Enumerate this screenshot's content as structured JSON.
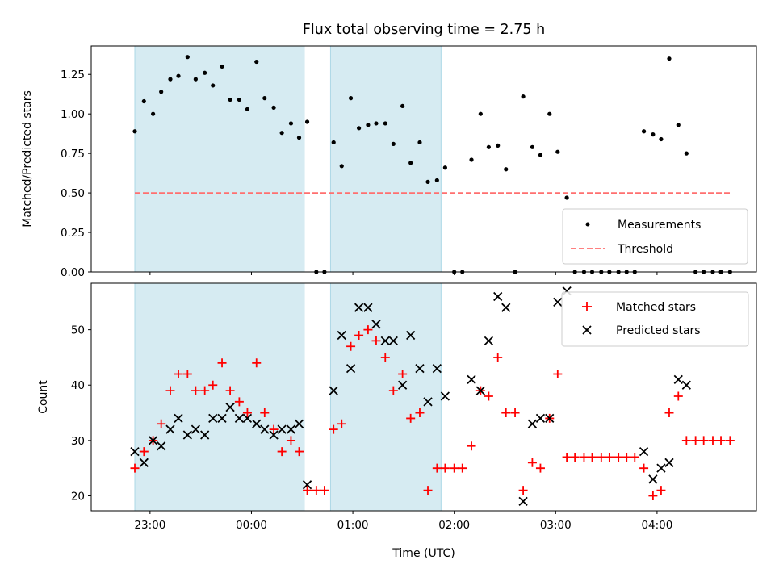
{
  "title": "Flux total observing time = 2.75 h",
  "x_axis": {
    "label": "Time (UTC)",
    "tick_labels": [
      "23:00",
      "00:00",
      "01:00",
      "02:00",
      "03:00",
      "04:00"
    ]
  },
  "colors": {
    "shade": "#add8e6",
    "measurement": "#000000",
    "threshold": "#ff6f6f",
    "matched": "#ff0000",
    "predicted": "#000000"
  },
  "chart_data": [
    {
      "type": "scatter",
      "ylabel": "Matched/Predicted stars",
      "xlabel": "",
      "x_units": "hours since 22:00 UTC",
      "xlim": [
        0.42,
        6.98
      ],
      "ylim": [
        0.0,
        1.43
      ],
      "yticks": [
        "0.00",
        "0.25",
        "0.50",
        "0.75",
        "1.00",
        "1.25"
      ],
      "shaded_intervals": [
        [
          0.85,
          2.52
        ],
        [
          2.78,
          3.87
        ]
      ],
      "threshold": {
        "name": "Threshold",
        "value": 0.5,
        "x_range": [
          0.85,
          6.72
        ],
        "style": "dashed"
      },
      "legend": {
        "position": "lower-right",
        "entries": [
          "Measurements",
          "Threshold"
        ]
      },
      "series": [
        {
          "name": "Measurements",
          "marker": "dot",
          "x": [
            0.85,
            0.94,
            1.03,
            1.11,
            1.2,
            1.28,
            1.37,
            1.45,
            1.54,
            1.62,
            1.71,
            1.79,
            1.88,
            1.96,
            2.05,
            2.13,
            2.22,
            2.3,
            2.39,
            2.47,
            2.55,
            2.64,
            2.72,
            2.81,
            2.89,
            2.98,
            3.06,
            3.15,
            3.23,
            3.32,
            3.4,
            3.49,
            3.57,
            3.66,
            3.74,
            3.83,
            3.91,
            4.0,
            4.08,
            4.17,
            4.26,
            4.34,
            4.43,
            4.51,
            4.6,
            4.68,
            4.77,
            4.85,
            4.94,
            5.02,
            5.11,
            5.19,
            5.28,
            5.36,
            5.45,
            5.53,
            5.62,
            5.7,
            5.78,
            5.87,
            5.96,
            6.04,
            6.12,
            6.21,
            6.29,
            6.38,
            6.46,
            6.55,
            6.63,
            6.72
          ],
          "y": [
            0.89,
            1.08,
            1.0,
            1.14,
            1.22,
            1.24,
            1.36,
            1.22,
            1.26,
            1.18,
            1.3,
            1.09,
            1.09,
            1.03,
            1.33,
            1.1,
            1.04,
            0.88,
            0.94,
            0.85,
            0.95,
            0.0,
            0.0,
            0.82,
            0.67,
            1.1,
            0.91,
            0.93,
            0.94,
            0.94,
            0.81,
            1.05,
            0.69,
            0.82,
            0.57,
            0.58,
            0.66,
            0.0,
            0.0,
            0.71,
            1.0,
            0.79,
            0.8,
            0.65,
            0.0,
            1.11,
            0.79,
            0.74,
            1.0,
            0.76,
            0.47,
            0.0,
            0.0,
            0.0,
            0.0,
            0.0,
            0.0,
            0.0,
            0.0,
            0.89,
            0.87,
            0.84,
            1.35,
            0.93,
            0.75,
            0.0,
            0.0,
            0.0,
            0.0,
            0.0
          ]
        }
      ]
    },
    {
      "type": "scatter",
      "ylabel": "Count",
      "xlabel": "Time (UTC)",
      "x_units": "hours since 22:00 UTC",
      "xlim": [
        0.42,
        6.98
      ],
      "ylim": [
        17.3,
        58.4
      ],
      "yticks": [
        "20",
        "30",
        "40",
        "50"
      ],
      "shaded_intervals": [
        [
          0.85,
          2.52
        ],
        [
          2.78,
          3.87
        ]
      ],
      "legend": {
        "position": "upper-right",
        "entries": [
          "Matched stars",
          "Predicted stars"
        ]
      },
      "series": [
        {
          "name": "Matched stars",
          "marker": "plus",
          "x": [
            0.85,
            0.94,
            1.03,
            1.11,
            1.2,
            1.28,
            1.37,
            1.45,
            1.54,
            1.62,
            1.71,
            1.79,
            1.88,
            1.96,
            2.05,
            2.13,
            2.22,
            2.3,
            2.39,
            2.47,
            2.55,
            2.64,
            2.72,
            2.81,
            2.89,
            2.98,
            3.06,
            3.15,
            3.23,
            3.32,
            3.4,
            3.49,
            3.57,
            3.66,
            3.74,
            3.83,
            3.91,
            4.0,
            4.08,
            4.17,
            4.26,
            4.34,
            4.43,
            4.51,
            4.6,
            4.68,
            4.77,
            4.85,
            4.94,
            5.02,
            5.11,
            5.19,
            5.28,
            5.36,
            5.45,
            5.53,
            5.62,
            5.7,
            5.78,
            5.87,
            5.96,
            6.04,
            6.12,
            6.21,
            6.29,
            6.38,
            6.46,
            6.55,
            6.63,
            6.72
          ],
          "y": [
            25,
            28,
            30,
            33,
            39,
            42,
            42,
            39,
            39,
            40,
            44,
            39,
            37,
            35,
            44,
            35,
            32,
            28,
            30,
            28,
            21,
            21,
            21,
            32,
            33,
            47,
            49,
            50,
            48,
            45,
            39,
            42,
            34,
            35,
            21,
            25,
            25,
            25,
            25,
            29,
            39,
            38,
            45,
            35,
            35,
            21,
            26,
            25,
            34,
            42,
            27,
            27,
            27,
            27,
            27,
            27,
            27,
            27,
            27,
            25,
            20,
            21,
            35,
            38,
            30,
            30,
            30,
            30,
            30,
            30
          ]
        },
        {
          "name": "Predicted stars",
          "marker": "x",
          "x": [
            0.85,
            0.94,
            1.03,
            1.11,
            1.2,
            1.28,
            1.37,
            1.45,
            1.54,
            1.62,
            1.71,
            1.79,
            1.88,
            1.96,
            2.05,
            2.13,
            2.22,
            2.3,
            2.39,
            2.47,
            2.55,
            2.81,
            2.89,
            2.98,
            3.06,
            3.15,
            3.23,
            3.32,
            3.4,
            3.49,
            3.57,
            3.66,
            3.74,
            3.83,
            3.91,
            4.17,
            4.26,
            4.34,
            4.43,
            4.51,
            4.68,
            4.77,
            4.85,
            4.94,
            5.02,
            5.11,
            5.87,
            5.96,
            6.04,
            6.12,
            6.21,
            6.29
          ],
          "y": [
            28,
            26,
            30,
            29,
            32,
            34,
            31,
            32,
            31,
            34,
            34,
            36,
            34,
            34,
            33,
            32,
            31,
            32,
            32,
            33,
            22,
            39,
            49,
            43,
            54,
            54,
            51,
            48,
            48,
            40,
            49,
            43,
            37,
            43,
            38,
            41,
            39,
            48,
            56,
            54,
            19,
            33,
            34,
            34,
            55,
            57,
            28,
            23,
            25,
            26,
            41,
            40
          ]
        }
      ]
    }
  ]
}
